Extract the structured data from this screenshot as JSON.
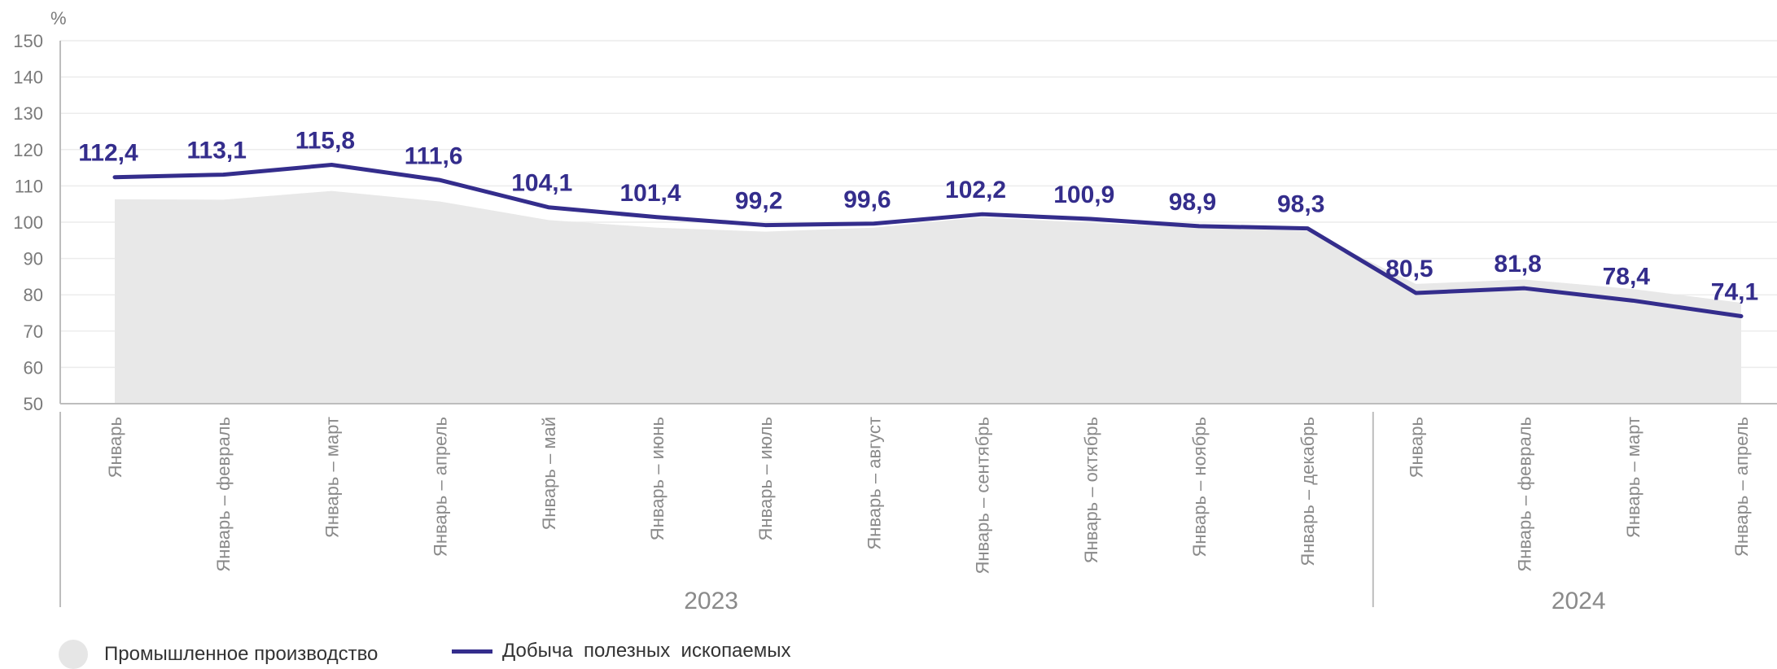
{
  "chart_data": {
    "type": "line",
    "unit_label": "%",
    "y_ticks": [
      50,
      60,
      70,
      80,
      90,
      100,
      110,
      120,
      130,
      140,
      150
    ],
    "ylim": [
      50,
      150
    ],
    "grid": true,
    "legend_position": "bottom-left",
    "categories": [
      "Январь",
      "Январь – февраль",
      "Январь – март",
      "Январь – апрель",
      "Январь – май",
      "Январь – июнь",
      "Январь – июль",
      "Январь – август",
      "Январь – сентябрь",
      "Январь – октябрь",
      "Январь – ноябрь",
      "Январь – декабрь",
      "Январь",
      "Январь – февраль",
      "Январь – март",
      "Январь – апрель"
    ],
    "groups": [
      {
        "label": "2023",
        "count": 12
      },
      {
        "label": "2024",
        "count": 4
      }
    ],
    "series": [
      {
        "name": "Промышленное производство",
        "type": "area",
        "color": "#e8e8e8",
        "values": [
          106.3,
          106.2,
          108.6,
          105.7,
          100.6,
          98.5,
          97.4,
          98.5,
          101.4,
          99.8,
          98.5,
          97.6,
          83.0,
          84.2,
          81.6,
          77.8
        ]
      },
      {
        "name": "Добыча  полезных  ископаемых",
        "type": "line",
        "color": "#342d8c",
        "values": [
          112.4,
          113.1,
          115.8,
          111.6,
          104.1,
          101.4,
          99.2,
          99.6,
          102.2,
          100.9,
          98.9,
          98.3,
          80.5,
          81.8,
          78.4,
          74.1
        ],
        "data_labels": [
          "112,4",
          "113,1",
          "115,8",
          "111,6",
          "104,1",
          "101,4",
          "99,2",
          "99,6",
          "102,2",
          "100,9",
          "98,9",
          "98,3",
          "80,5",
          "81,8",
          "78,4",
          "74,1"
        ]
      }
    ]
  }
}
